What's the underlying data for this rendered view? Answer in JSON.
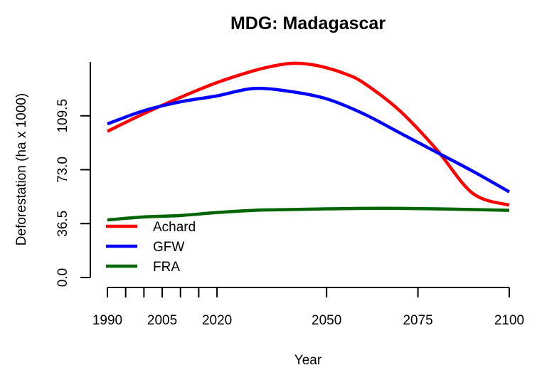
{
  "chart_data": {
    "type": "line",
    "title": "MDG: Madagascar",
    "xlabel": "Year",
    "ylabel": "Deforestation (ha x 1000)",
    "xlim": [
      1990,
      2100
    ],
    "ylim": [
      0,
      146
    ],
    "x_major_ticks": [
      1990,
      2005,
      2020,
      2050,
      2075,
      2100
    ],
    "x_minor_ticks": [
      1995,
      2000,
      2010,
      2015
    ],
    "y_ticks": [
      0.0,
      36.5,
      73.0,
      109.5
    ],
    "y_tick_labels": [
      "0.0",
      "36.5",
      "73.0",
      "109.5"
    ],
    "grid": false,
    "legend_position": "bottom-left",
    "series": [
      {
        "name": "Achard",
        "color": "#ff0000",
        "x": [
          1990,
          2000,
          2010,
          2020,
          2030,
          2035,
          2040,
          2045,
          2050,
          2055,
          2060,
          2070,
          2080,
          2090,
          2100
        ],
        "values": [
          99,
          111,
          122,
          132,
          140,
          143,
          145,
          144.5,
          142,
          138,
          132,
          113,
          87,
          57,
          49
        ]
      },
      {
        "name": "GFW",
        "color": "#0000ff",
        "x": [
          1990,
          2000,
          2010,
          2020,
          2030,
          2040,
          2050,
          2060,
          2070,
          2080,
          2090,
          2100
        ],
        "values": [
          104,
          113,
          119,
          123,
          128,
          126,
          121,
          111,
          98,
          85,
          72,
          58
        ]
      },
      {
        "name": "FRA",
        "color": "#006400",
        "x": [
          1990,
          2000,
          2010,
          2020,
          2030,
          2040,
          2050,
          2060,
          2070,
          2080,
          2090,
          2100
        ],
        "values": [
          39,
          41,
          42,
          44,
          45.5,
          46,
          46.5,
          46.8,
          46.8,
          46.5,
          46,
          45.5
        ]
      }
    ]
  }
}
